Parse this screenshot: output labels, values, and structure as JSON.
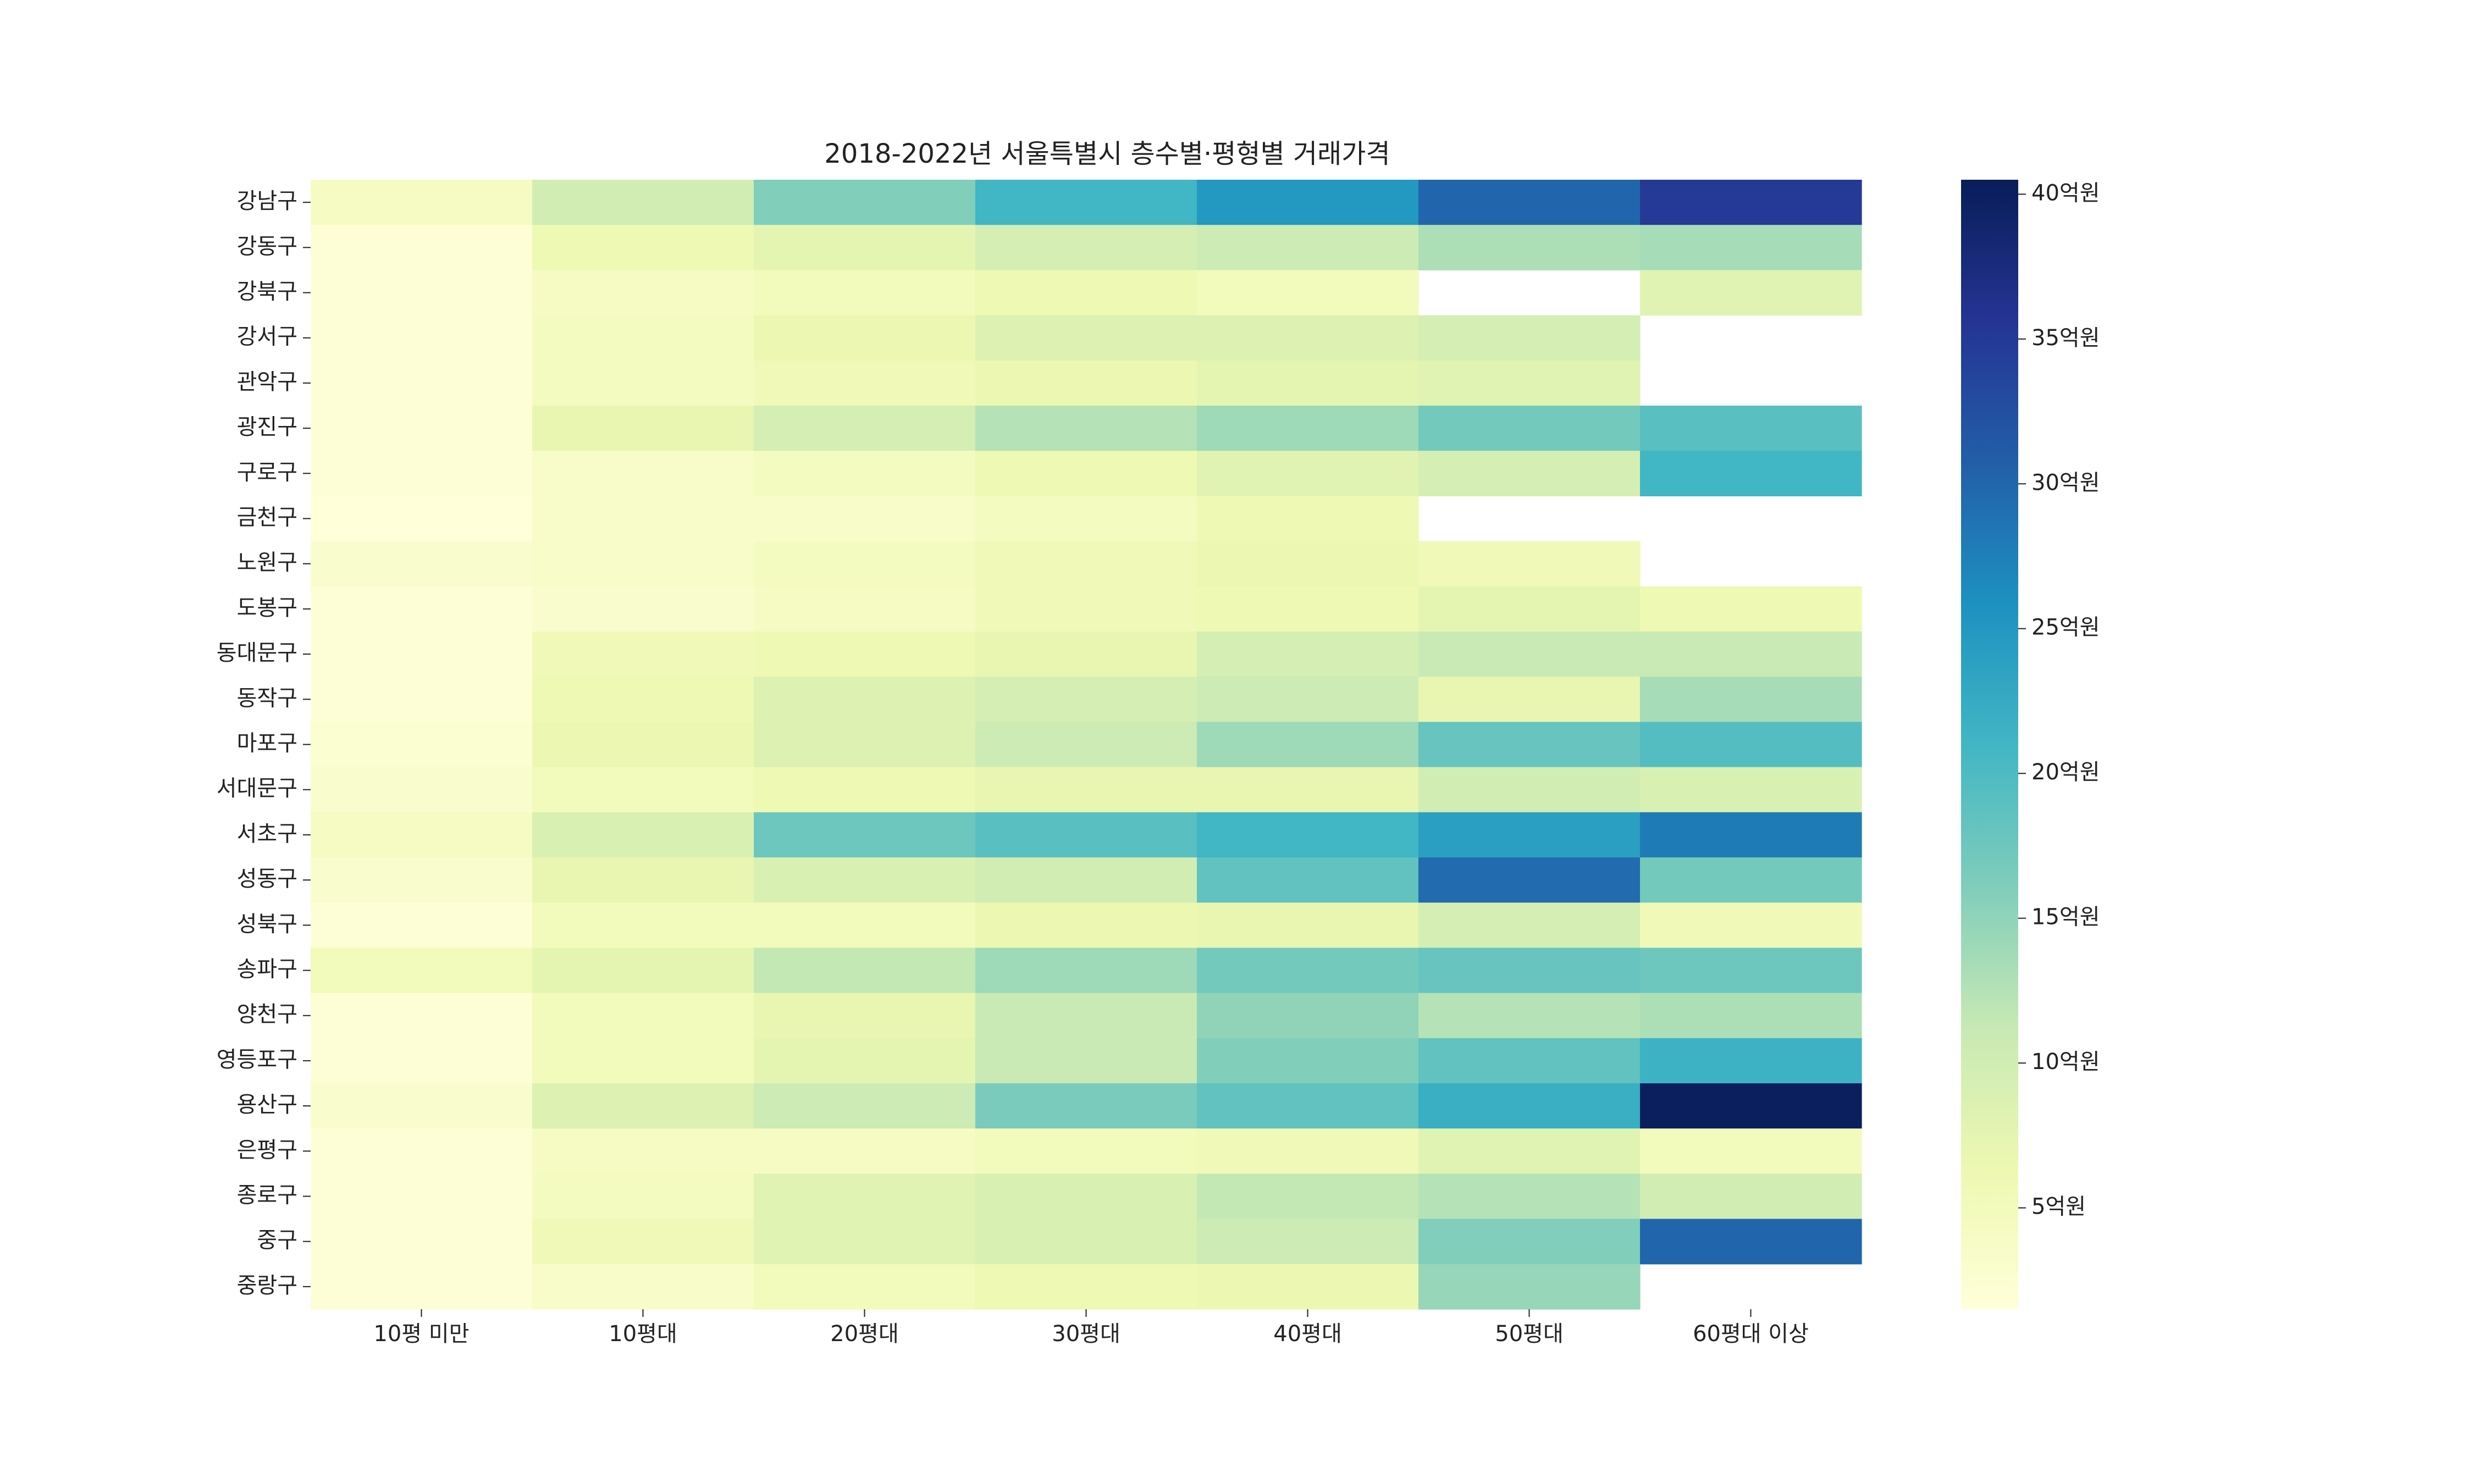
{
  "chart_data": {
    "type": "heatmap",
    "title": "2018-2022년 서울특별시 층수별·평형별 거래가격",
    "xlabel": "",
    "ylabel": "",
    "x_categories": [
      "10평 미만",
      "10평대",
      "20평대",
      "30평대",
      "40평대",
      "50평대",
      "60평대 이상"
    ],
    "y_categories": [
      "강남구",
      "강동구",
      "강북구",
      "강서구",
      "관악구",
      "광진구",
      "구로구",
      "금천구",
      "노원구",
      "도봉구",
      "동대문구",
      "동작구",
      "마포구",
      "서대문구",
      "서초구",
      "성동구",
      "성북구",
      "송파구",
      "양천구",
      "영등포구",
      "용산구",
      "은평구",
      "종로구",
      "중구",
      "중랑구"
    ],
    "values_unit": "억원",
    "values": [
      [
        4.0,
        10.0,
        16.0,
        21.0,
        25.0,
        30.0,
        35.0
      ],
      [
        2.0,
        6.0,
        7.5,
        9.5,
        10.5,
        13.0,
        13.5
      ],
      [
        2.0,
        4.0,
        5.0,
        6.0,
        5.0,
        null,
        8.0
      ],
      [
        2.0,
        4.5,
        6.5,
        8.5,
        8.5,
        9.5,
        null
      ],
      [
        2.0,
        4.5,
        5.5,
        6.5,
        7.5,
        8.0,
        null
      ],
      [
        2.0,
        7.0,
        9.5,
        12.5,
        14.0,
        17.0,
        19.0
      ],
      [
        2.0,
        3.5,
        4.5,
        6.0,
        8.0,
        9.5,
        21.0
      ],
      [
        1.5,
        3.5,
        3.5,
        4.5,
        6.0,
        null,
        null
      ],
      [
        3.0,
        3.5,
        4.5,
        5.5,
        6.5,
        5.5,
        null
      ],
      [
        2.0,
        3.0,
        4.0,
        5.5,
        6.0,
        7.5,
        6.0
      ],
      [
        2.0,
        5.5,
        6.0,
        7.0,
        9.5,
        11.0,
        11.0
      ],
      [
        2.0,
        6.0,
        8.5,
        9.5,
        10.5,
        7.0,
        13.5
      ],
      [
        2.5,
        6.5,
        8.5,
        10.5,
        14.0,
        18.0,
        19.5
      ],
      [
        3.0,
        5.0,
        6.0,
        7.0,
        7.0,
        10.0,
        9.0
      ],
      [
        4.0,
        9.0,
        17.5,
        19.0,
        21.0,
        24.0,
        28.0
      ],
      [
        3.0,
        7.0,
        9.0,
        10.0,
        18.5,
        29.5,
        17.0
      ],
      [
        2.0,
        5.0,
        5.0,
        6.5,
        7.0,
        9.5,
        5.5
      ],
      [
        5.0,
        7.5,
        11.5,
        14.0,
        17.0,
        18.0,
        17.5
      ],
      [
        2.0,
        5.0,
        7.0,
        11.0,
        15.0,
        12.5,
        13.0
      ],
      [
        2.0,
        5.0,
        7.5,
        11.0,
        16.0,
        18.5,
        21.5
      ],
      [
        3.0,
        8.5,
        10.5,
        16.5,
        18.5,
        22.0,
        40.0
      ],
      [
        2.0,
        4.0,
        4.0,
        5.0,
        5.5,
        8.0,
        5.0
      ],
      [
        2.0,
        4.5,
        8.0,
        9.0,
        11.5,
        12.5,
        10.0
      ],
      [
        2.0,
        5.5,
        8.0,
        9.0,
        10.5,
        16.0,
        30.0
      ],
      [
        2.0,
        3.5,
        5.0,
        6.0,
        6.5,
        14.5,
        null
      ]
    ],
    "colorbar": {
      "colormap": "YlGnBu",
      "range": [
        1.5,
        40.5
      ],
      "ticks": [
        5,
        10,
        15,
        20,
        25,
        30,
        35,
        40
      ],
      "tick_labels": [
        "5억원",
        "10억원",
        "15억원",
        "20억원",
        "25억원",
        "30억원",
        "35억원",
        "40억원"
      ]
    },
    "grid": false,
    "missing_cells": "blank"
  }
}
